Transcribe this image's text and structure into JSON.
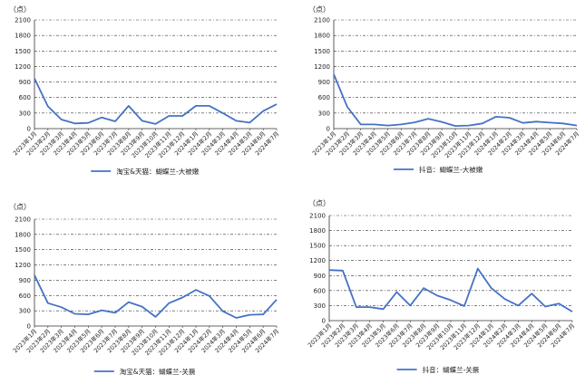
{
  "chart_data": [
    {
      "type": "line",
      "title": "",
      "unit_label": "（点）",
      "ylim": [
        0,
        2100
      ],
      "yticks": [
        0,
        300,
        600,
        900,
        1200,
        1500,
        1800,
        2100
      ],
      "grid": true,
      "legend_position": "bottom-center",
      "line_color": "#4472C4",
      "x": [
        "2023年1月",
        "2023年2月",
        "2023年3月",
        "2023年4月",
        "2023年5月",
        "2023年6月",
        "2023年7月",
        "2023年8月",
        "2023年9月",
        "2023年10月",
        "2023年11月",
        "2023年12月",
        "2024年1月",
        "2024年2月",
        "2024年3月",
        "2024年4月",
        "2024年5月",
        "2024年6月",
        "2024年7月"
      ],
      "series": [
        {
          "name": "淘宝&天猫：蝴蝶兰-大被嫩",
          "values": [
            970,
            430,
            175,
            100,
            110,
            215,
            140,
            440,
            150,
            90,
            245,
            245,
            440,
            440,
            300,
            150,
            115,
            340,
            470
          ]
        }
      ]
    },
    {
      "type": "line",
      "title": "",
      "unit_label": "（点）",
      "ylim": [
        0,
        2100
      ],
      "yticks": [
        0,
        300,
        600,
        900,
        1200,
        1500,
        1800,
        2100
      ],
      "grid": true,
      "legend_position": "bottom-center",
      "line_color": "#4472C4",
      "x": [
        "2023年1月",
        "2023年2月",
        "2023年3月",
        "2023年4月",
        "2023年5月",
        "2023年6月",
        "2023年7月",
        "2023年8月",
        "2023年9月",
        "2023年10月",
        "2023年11月",
        "2023年12月",
        "2024年1月",
        "2024年2月",
        "2024年3月",
        "2024年4月",
        "2024年5月",
        "2024年6月",
        "2024年7月"
      ],
      "series": [
        {
          "name": "抖音：蝴蝶兰-大被嫩",
          "values": [
            1050,
            420,
            80,
            80,
            60,
            80,
            120,
            190,
            130,
            50,
            60,
            100,
            230,
            210,
            110,
            135,
            115,
            100,
            60
          ]
        }
      ]
    },
    {
      "type": "line",
      "title": "",
      "unit_label": "（点）",
      "ylim": [
        0,
        2100
      ],
      "yticks": [
        0,
        300,
        600,
        900,
        1200,
        1500,
        1800,
        2100
      ],
      "grid": true,
      "legend_position": "bottom-center",
      "line_color": "#4472C4",
      "x": [
        "2023年1月",
        "2023年2月",
        "2023年3月",
        "2023年4月",
        "2023年5月",
        "2023年6月",
        "2023年7月",
        "2023年8月",
        "2023年9月",
        "2023年10月",
        "2023年11月",
        "2023年12月",
        "2024年1月",
        "2024年2月",
        "2024年3月",
        "2024年4月",
        "2024年5月",
        "2024年6月",
        "2024年7月"
      ],
      "series": [
        {
          "name": "淘宝&天猫：蝴蝶兰-关撅",
          "values": [
            1000,
            450,
            370,
            240,
            230,
            310,
            260,
            470,
            380,
            180,
            450,
            560,
            710,
            590,
            290,
            160,
            220,
            230,
            520
          ]
        }
      ]
    },
    {
      "type": "line",
      "title": "",
      "unit_label": "（点）",
      "ylim": [
        0,
        2100
      ],
      "yticks": [
        0,
        300,
        600,
        900,
        1200,
        1500,
        1800,
        2100
      ],
      "grid": true,
      "legend_position": "bottom-center",
      "line_color": "#4472C4",
      "x": [
        "2023年1月",
        "2023年2月",
        "2023年3月",
        "2023年4月",
        "2023年5月",
        "2023年6月",
        "2023年7月",
        "2023年8月",
        "2023年9月",
        "2023年10月",
        "2023年11月",
        "2023年12月",
        "2024年1月",
        "2024年2月",
        "2024年3月",
        "2024年4月",
        "2024年5月",
        "2024年6月",
        "2024年7月"
      ],
      "series": [
        {
          "name": "抖音：蝴蝶兰-关撅",
          "values": [
            1010,
            1000,
            270,
            270,
            230,
            570,
            300,
            650,
            500,
            410,
            290,
            1040,
            650,
            430,
            300,
            540,
            280,
            340,
            180
          ]
        }
      ]
    }
  ]
}
